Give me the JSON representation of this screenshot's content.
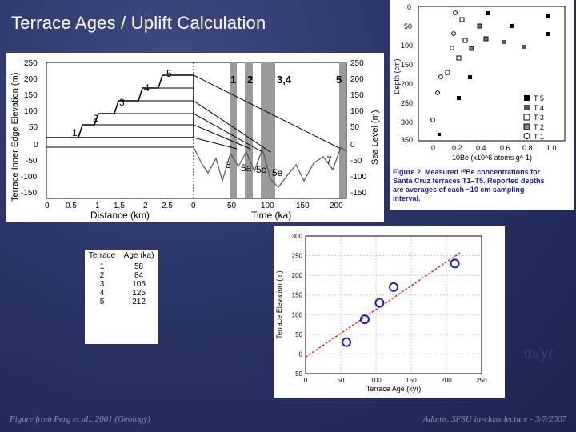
{
  "slide": {
    "title": "Terrace Ages / Uplift Calculation",
    "footer_left": "Figure from Perg et al., 2001 (Geology)",
    "footer_right": "Adams, SFSU in-class lecture - 3/7/2007",
    "partial_text": "m/yr"
  },
  "figure1": {
    "ylabel_left": "Terrace Inner Edge Elevation (m)",
    "ylabel_right": "Sea Level (m)",
    "xlabel_left": "Distance (km)",
    "xlabel_right": "Time (ka)",
    "y_ticks": [
      "250",
      "200",
      "150",
      "100",
      "50",
      "0",
      "-50",
      "-100",
      "-150"
    ],
    "x_ticks_distance": [
      "0",
      "0.5",
      "1",
      "1.5",
      "2",
      "2.5"
    ],
    "x_ticks_time": [
      "0",
      "50",
      "100",
      "150",
      "200"
    ],
    "terrace_labels": [
      "1",
      "2",
      "3",
      "4",
      "5"
    ],
    "stage_labels": [
      "1",
      "2",
      "3,4",
      "5",
      "3",
      "5a",
      "5c",
      "5e",
      "7"
    ]
  },
  "figure2": {
    "ylabel": "Depth (cm)",
    "xlabel": "10Be (x10^6 atoms g^-1)",
    "y_ticks": [
      "0",
      "50",
      "100",
      "150",
      "200",
      "250",
      "300",
      "350"
    ],
    "x_ticks": [
      "0",
      "0.2",
      "0.4",
      "0.6",
      "0.8",
      "1.0"
    ],
    "legend": [
      "T 5",
      "T 4",
      "T 3",
      "T 2",
      "T 1"
    ],
    "caption": "Figure 2. Measured 10Be concentrations for Santa Cruz terraces T1–T5. Reported depths are averages of each ~10 cm sampling interval."
  },
  "age_table": {
    "headers": [
      "Terrace",
      "Age (ka)"
    ],
    "rows": [
      [
        "1",
        "58"
      ],
      [
        "2",
        "84"
      ],
      [
        "3",
        "105"
      ],
      [
        "4",
        "125"
      ],
      [
        "5",
        "212"
      ]
    ]
  },
  "chart_data": {
    "type": "scatter",
    "xlabel": "Terrace Age (kyr)",
    "ylabel": "Terrace Elevation (m)",
    "xlim": [
      0,
      250
    ],
    "ylim": [
      -50,
      300
    ],
    "x_ticks": [
      0,
      50,
      100,
      150,
      200,
      250
    ],
    "y_ticks": [
      -50,
      0,
      50,
      100,
      150,
      200,
      250,
      300
    ],
    "grid": true,
    "points": [
      {
        "x": 58,
        "y": 30
      },
      {
        "x": 84,
        "y": 88
      },
      {
        "x": 105,
        "y": 130
      },
      {
        "x": 125,
        "y": 170
      },
      {
        "x": 212,
        "y": 230
      }
    ],
    "fit_line": {
      "x": [
        0,
        220
      ],
      "y": [
        -8,
        258
      ]
    },
    "colors": {
      "points": "#1c1cc8",
      "fit": "#d01010",
      "grid": "#c8c8c8"
    }
  }
}
